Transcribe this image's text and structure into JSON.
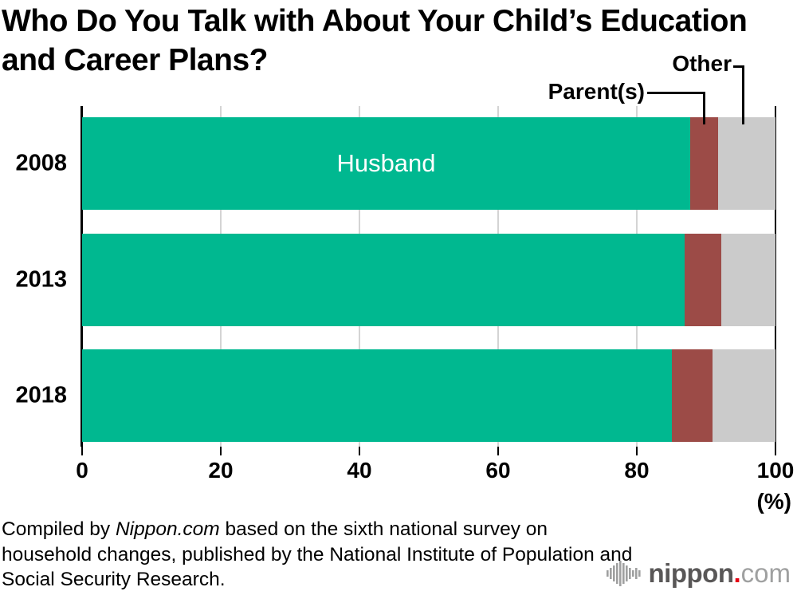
{
  "title": {
    "line1": "Who Do You Talk with About Your Child’s Education",
    "line2": "and Career Plans?"
  },
  "annotations": {
    "other": "Other",
    "parents": "Parent(s)",
    "husband": "Husband"
  },
  "chart_data": {
    "type": "bar",
    "orientation": "horizontal",
    "stacked": true,
    "title": "Who Do You Talk with About Your Child’s Education and Career Plans?",
    "categories": [
      "2008",
      "2013",
      "2018"
    ],
    "series": [
      {
        "name": "Husband",
        "color": "#00b890",
        "values": [
          87.7,
          86.9,
          85.1
        ]
      },
      {
        "name": "Parent(s)",
        "color": "#9c4b47",
        "values": [
          4.0,
          5.3,
          5.8
        ]
      },
      {
        "name": "Other",
        "color": "#cbcbcb",
        "values": [
          8.3,
          7.8,
          9.1
        ]
      }
    ],
    "xlim": [
      0,
      100
    ],
    "x_ticks": [
      0,
      20,
      40,
      60,
      80,
      100
    ],
    "x_unit": "(%)",
    "grid": true,
    "legend_position": "callout-labels-above-first-bar"
  },
  "footer": {
    "prefix": "Compiled by ",
    "source_name": "Nippon.com",
    "suffix": " based on the sixth national survey on household changes, published by the National Institute of Population and Social Security Research."
  },
  "logo": {
    "name": "nippon",
    "dot": ".",
    "tld": "com",
    "name_color": "#595757",
    "dot_color": "#e60012",
    "tld_color": "#9fa0a0"
  }
}
